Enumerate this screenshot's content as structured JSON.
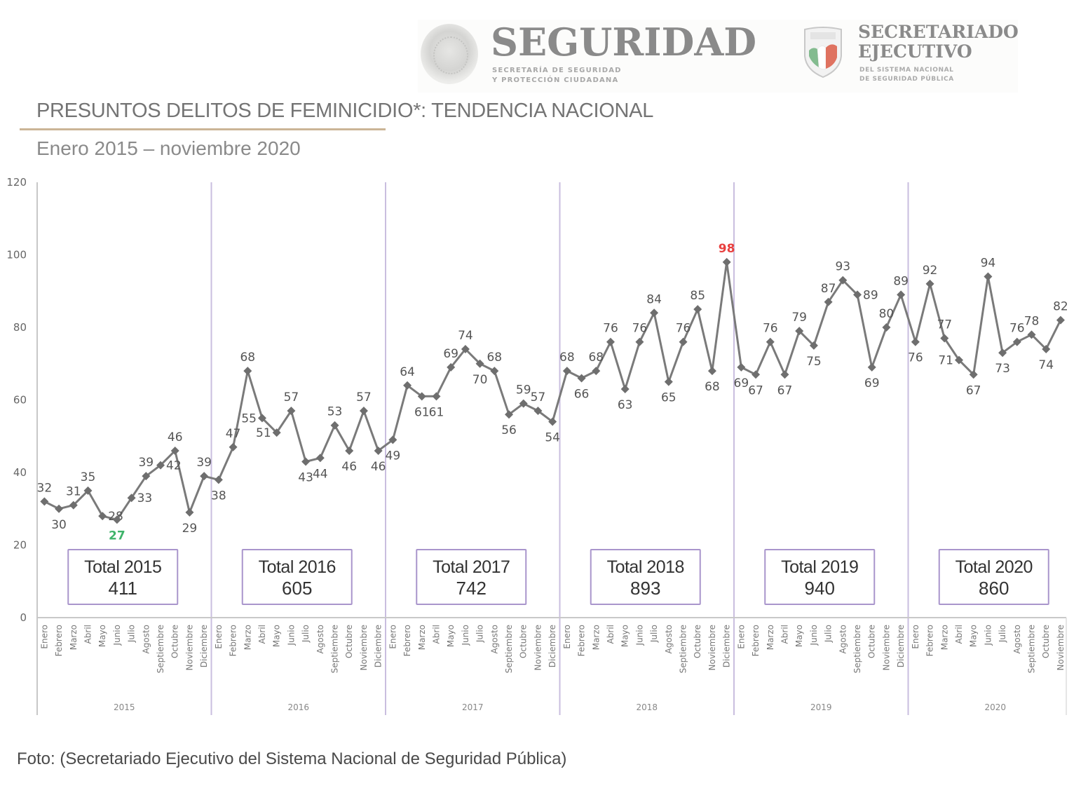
{
  "header": {
    "seguridad_title": "SEGURIDAD",
    "seguridad_subtitle": "SECRETARÍA DE SEGURIDAD\nY PROTECCIÓN CIUDADANA",
    "secretariado_title": "SECRETARIADO\nEJECUTIVO",
    "secretariado_subtitle": "DEL SISTEMA NACIONAL\nDE SEGURIDAD PÚBLICA"
  },
  "caption": "Foto: (Secretariado Ejecutivo del Sistema Nacional de Seguridad Pública)",
  "colors": {
    "line": "#7a7a7a",
    "marker": "#6e6e6e",
    "label": "#555555",
    "max_highlight": "#e8403f",
    "min_highlight": "#3fb36a",
    "year_divider": "#c9bedf",
    "total_box_border": "#a995cc",
    "axis": "#c8c8c8"
  },
  "chart_data": {
    "type": "line",
    "title": "PRESUNTOS DELITOS DE FEMINICIDIO*: TENDENCIA NACIONAL",
    "subtitle": "Enero 2015 – noviembre 2020",
    "xlabel": "",
    "ylabel": "",
    "ylim": [
      0,
      120
    ],
    "yticks": [
      0,
      20,
      40,
      60,
      80,
      100,
      120
    ],
    "grid": false,
    "legend": "none",
    "months": [
      "Enero",
      "Febrero",
      "Marzo",
      "Abril",
      "Mayo",
      "Junio",
      "Julio",
      "Agosto",
      "Septiembre",
      "Octubre",
      "Noviembre",
      "Diciembre"
    ],
    "years": [
      {
        "year": "2015",
        "total_label": "Total 2015",
        "total": 411,
        "values": [
          32,
          30,
          31,
          35,
          28,
          27,
          33,
          39,
          42,
          46,
          29,
          39
        ]
      },
      {
        "year": "2016",
        "total_label": "Total 2016",
        "total": 605,
        "values": [
          38,
          47,
          68,
          55,
          51,
          57,
          43,
          44,
          53,
          46,
          57,
          46
        ]
      },
      {
        "year": "2017",
        "total_label": "Total 2017",
        "total": 742,
        "values": [
          49,
          64,
          61,
          61,
          69,
          74,
          70,
          68,
          56,
          59,
          57,
          54
        ]
      },
      {
        "year": "2018",
        "total_label": "Total 2018",
        "total": 893,
        "values": [
          68,
          66,
          68,
          76,
          63,
          76,
          84,
          65,
          76,
          85,
          68,
          98
        ]
      },
      {
        "year": "2019",
        "total_label": "Total 2019",
        "total": 940,
        "values": [
          69,
          67,
          76,
          67,
          79,
          75,
          87,
          93,
          89,
          69,
          80,
          89
        ]
      },
      {
        "year": "2020",
        "total_label": "Total 2020",
        "total": 860,
        "values": [
          76,
          92,
          77,
          71,
          67,
          94,
          73,
          76,
          78,
          74,
          82
        ]
      }
    ],
    "label_positions": [
      [
        "above",
        "below",
        "above",
        "above",
        "right",
        "below",
        "right",
        "above",
        "right",
        "above",
        "below",
        "above"
      ],
      [
        "below",
        "above",
        "above",
        "left",
        "left",
        "above",
        "below",
        "below",
        "above",
        "below",
        "above",
        "below"
      ],
      [
        "below",
        "above",
        "below",
        "below",
        "above",
        "above",
        "below",
        "above",
        "below",
        "above",
        "above",
        "below"
      ],
      [
        "above",
        "below",
        "above",
        "above",
        "below",
        "above",
        "above",
        "below",
        "above",
        "above",
        "below",
        "above"
      ],
      [
        "below",
        "below",
        "above",
        "below",
        "above",
        "below",
        "above",
        "above",
        "right",
        "below",
        "above",
        "above"
      ],
      [
        "below",
        "above",
        "above",
        "left",
        "below",
        "above",
        "below",
        "above",
        "above",
        "below",
        "above"
      ]
    ],
    "annotations": [
      {
        "text": "98",
        "note": "maximum, highlighted red",
        "year": "2018",
        "month": "Diciembre"
      },
      {
        "text": "27",
        "note": "minimum, highlighted green",
        "year": "2015",
        "month": "Junio"
      }
    ]
  }
}
